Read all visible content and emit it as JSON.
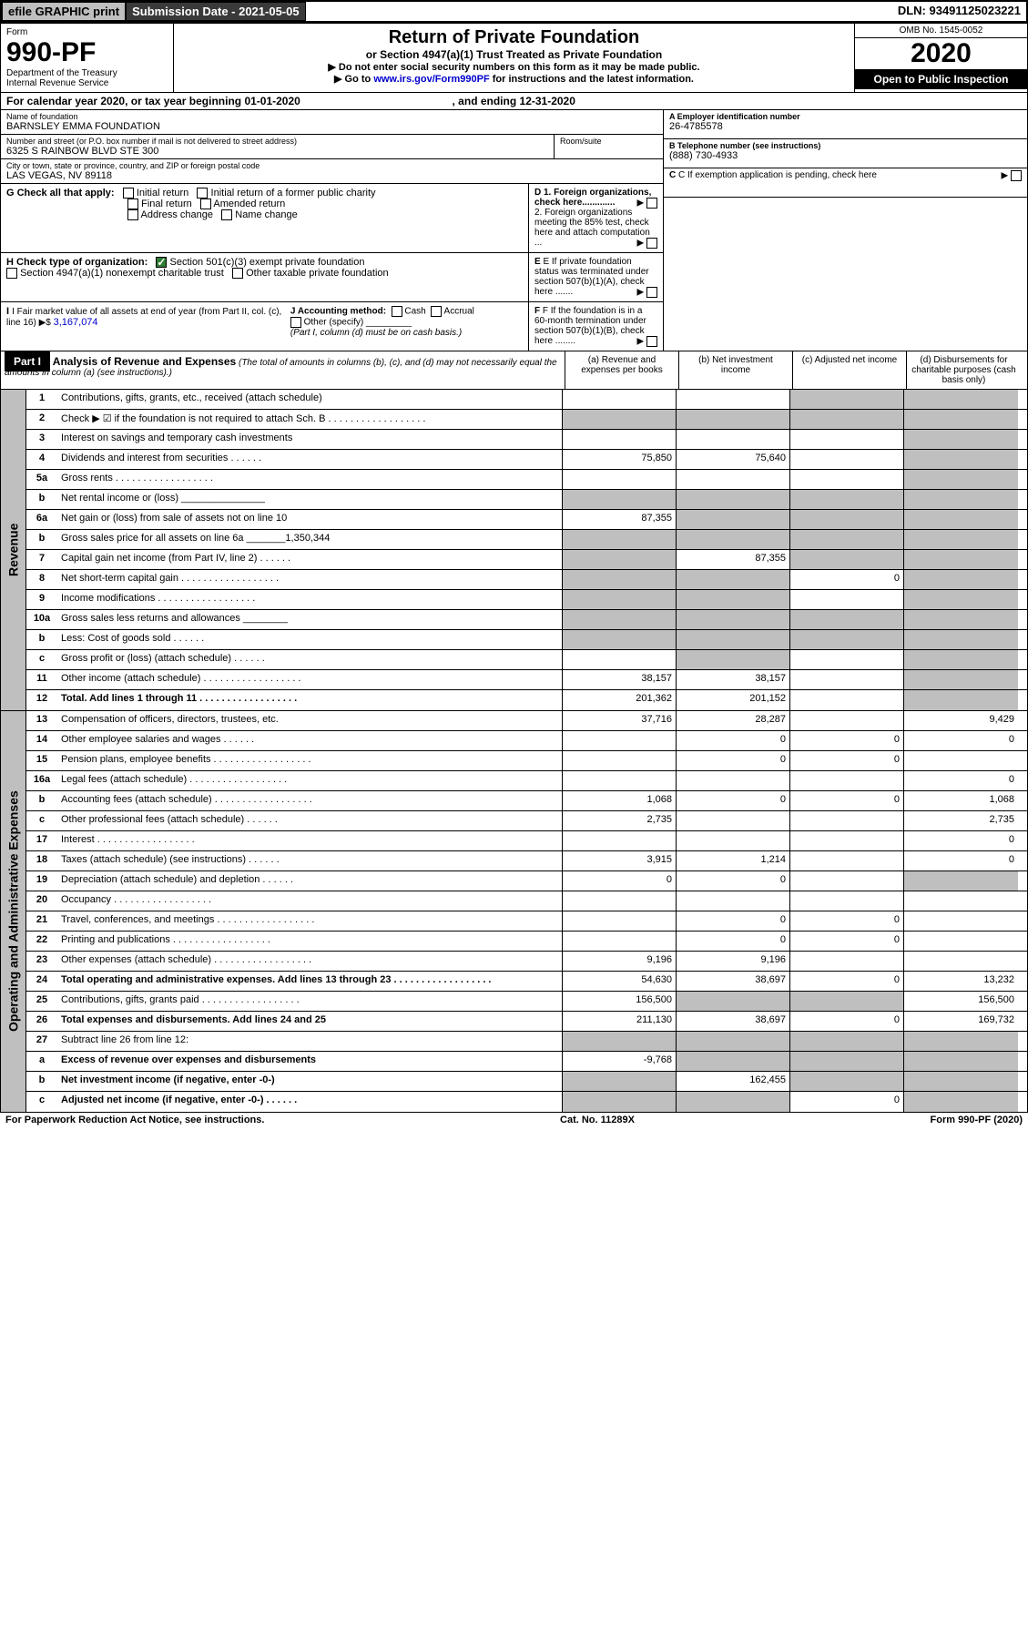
{
  "topbar": {
    "efile": "efile GRAPHIC print",
    "subdate": "Submission Date - 2021-05-05",
    "dln": "DLN: 93491125023221"
  },
  "header": {
    "form": "Form",
    "formno": "990-PF",
    "dept": "Department of the Treasury",
    "irs": "Internal Revenue Service",
    "title": "Return of Private Foundation",
    "sub": "or Section 4947(a)(1) Trust Treated as Private Foundation",
    "note1": "▶ Do not enter social security numbers on this form as it may be made public.",
    "note2_pre": "▶ Go to ",
    "note2_link": "www.irs.gov/Form990PF",
    "note2_post": " for instructions and the latest information.",
    "omb": "OMB No. 1545-0052",
    "year": "2020",
    "open": "Open to Public Inspection"
  },
  "calyear": {
    "a": "For calendar year 2020, or tax year beginning 01-01-2020",
    "b": ", and ending 12-31-2020"
  },
  "info": {
    "name_lbl": "Name of foundation",
    "name": "BARNSLEY EMMA FOUNDATION",
    "addr_lbl": "Number and street (or P.O. box number if mail is not delivered to street address)",
    "room_lbl": "Room/suite",
    "addr": "6325 S RAINBOW BLVD STE 300",
    "city_lbl": "City or town, state or province, country, and ZIP or foreign postal code",
    "city": "LAS VEGAS, NV  89118",
    "a_lbl": "A Employer identification number",
    "a": "26-4785578",
    "b_lbl": "B Telephone number (see instructions)",
    "b": "(888) 730-4933",
    "c": "C If exemption application is pending, check here",
    "d1": "D 1. Foreign organizations, check here.............",
    "d2": "2. Foreign organizations meeting the 85% test, check here and attach computation ...",
    "e": "E If private foundation status was terminated under section 507(b)(1)(A), check here .......",
    "f": "F If the foundation is in a 60-month termination under section 507(b)(1)(B), check here ........"
  },
  "g": {
    "label": "G Check all that apply:",
    "o1": "Initial return",
    "o2": "Initial return of a former public charity",
    "o3": "Final return",
    "o4": "Amended return",
    "o5": "Address change",
    "o6": "Name change"
  },
  "h": {
    "label": "H Check type of organization:",
    "o1": "Section 501(c)(3) exempt private foundation",
    "o2": "Section 4947(a)(1) nonexempt charitable trust",
    "o3": "Other taxable private foundation"
  },
  "i": {
    "lbl": "I Fair market value of all assets at end of year (from Part II, col. (c), line 16) ▶$ ",
    "val": "3,167,074"
  },
  "j": {
    "lbl": "J Accounting method:",
    "cash": "Cash",
    "accr": "Accrual",
    "other": "Other (specify)",
    "note": "(Part I, column (d) must be on cash basis.)"
  },
  "part1_head": {
    "label": "Part I",
    "title": "Analysis of Revenue and Expenses",
    "sub": " (The total of amounts in columns (b), (c), and (d) may not necessarily equal the amounts in column (a) (see instructions).)",
    "col_a": "(a)   Revenue and expenses per books",
    "col_b": "(b)  Net investment income",
    "col_c": "(c)  Adjusted net income",
    "col_d": "(d)  Disbursements for charitable purposes (cash basis only)"
  },
  "vlabels": {
    "rev": "Revenue",
    "exp": "Operating and Administrative Expenses"
  },
  "rows": [
    {
      "n": "1",
      "d": "Contributions, gifts, grants, etc., received (attach schedule)",
      "a": "",
      "b": "",
      "c": "g",
      "dd": "g"
    },
    {
      "n": "2",
      "d": "Check ▶ ☑ if the foundation is not required to attach Sch. B",
      "dot": true,
      "a": "g",
      "b": "g",
      "c": "g",
      "dd": "g"
    },
    {
      "n": "3",
      "d": "Interest on savings and temporary cash investments",
      "a": "",
      "b": "",
      "c": "",
      "dd": "g"
    },
    {
      "n": "4",
      "d": "Dividends and interest from securities",
      "dot": "s",
      "a": "75,850",
      "b": "75,640",
      "c": "",
      "dd": "g"
    },
    {
      "n": "5a",
      "d": "Gross rents",
      "dot": true,
      "a": "",
      "b": "",
      "c": "",
      "dd": "g"
    },
    {
      "n": "b",
      "d": "Net rental income or (loss)   _______________",
      "a": "g",
      "b": "g",
      "c": "g",
      "dd": "g"
    },
    {
      "n": "6a",
      "d": "Net gain or (loss) from sale of assets not on line 10",
      "a": "87,355",
      "b": "g",
      "c": "g",
      "dd": "g"
    },
    {
      "n": "b",
      "d": "Gross sales price for all assets on line 6a _______1,350,344",
      "a": "g",
      "b": "g",
      "c": "g",
      "dd": "g"
    },
    {
      "n": "7",
      "d": "Capital gain net income (from Part IV, line 2)",
      "dot": "s",
      "a": "g",
      "b": "87,355",
      "c": "g",
      "dd": "g"
    },
    {
      "n": "8",
      "d": "Net short-term capital gain",
      "dot": true,
      "a": "g",
      "b": "g",
      "c": "0",
      "dd": "g"
    },
    {
      "n": "9",
      "d": "Income modifications",
      "dot": true,
      "a": "g",
      "b": "g",
      "c": "",
      "dd": "g"
    },
    {
      "n": "10a",
      "d": "Gross sales less returns and allowances  ________",
      "a": "g",
      "b": "g",
      "c": "g",
      "dd": "g"
    },
    {
      "n": "b",
      "d": "Less: Cost of goods sold",
      "dot": "s",
      "a": "g",
      "b": "g",
      "c": "g",
      "dd": "g"
    },
    {
      "n": "c",
      "d": "Gross profit or (loss) (attach schedule)",
      "dot": "s",
      "a": "",
      "b": "g",
      "c": "",
      "dd": "g"
    },
    {
      "n": "11",
      "d": "Other income (attach schedule)",
      "dot": true,
      "a": "38,157",
      "b": "38,157",
      "c": "",
      "dd": "g"
    },
    {
      "n": "12",
      "d": "Total. Add lines 1 through 11",
      "dot": true,
      "b2": true,
      "a": "201,362",
      "b": "201,152",
      "c": "",
      "dd": "g"
    }
  ],
  "exp_rows": [
    {
      "n": "13",
      "d": "Compensation of officers, directors, trustees, etc.",
      "a": "37,716",
      "b": "28,287",
      "c": "",
      "dd": "9,429"
    },
    {
      "n": "14",
      "d": "Other employee salaries and wages",
      "dot": "s",
      "a": "",
      "b": "0",
      "c": "0",
      "dd": "0"
    },
    {
      "n": "15",
      "d": "Pension plans, employee benefits",
      "dot": true,
      "a": "",
      "b": "0",
      "c": "0",
      "dd": ""
    },
    {
      "n": "16a",
      "d": "Legal fees (attach schedule)",
      "dot": true,
      "a": "",
      "b": "",
      "c": "",
      "dd": "0"
    },
    {
      "n": "b",
      "d": "Accounting fees (attach schedule)",
      "dot": true,
      "a": "1,068",
      "b": "0",
      "c": "0",
      "dd": "1,068"
    },
    {
      "n": "c",
      "d": "Other professional fees (attach schedule)",
      "dot": "s",
      "a": "2,735",
      "b": "",
      "c": "",
      "dd": "2,735"
    },
    {
      "n": "17",
      "d": "Interest",
      "dot": true,
      "a": "",
      "b": "",
      "c": "",
      "dd": "0"
    },
    {
      "n": "18",
      "d": "Taxes (attach schedule) (see instructions)",
      "dot": "s",
      "a": "3,915",
      "b": "1,214",
      "c": "",
      "dd": "0"
    },
    {
      "n": "19",
      "d": "Depreciation (attach schedule) and depletion",
      "dot": "s",
      "a": "0",
      "b": "0",
      "c": "",
      "dd": "g"
    },
    {
      "n": "20",
      "d": "Occupancy",
      "dot": true,
      "a": "",
      "b": "",
      "c": "",
      "dd": ""
    },
    {
      "n": "21",
      "d": "Travel, conferences, and meetings",
      "dot": true,
      "a": "",
      "b": "0",
      "c": "0",
      "dd": ""
    },
    {
      "n": "22",
      "d": "Printing and publications",
      "dot": true,
      "a": "",
      "b": "0",
      "c": "0",
      "dd": ""
    },
    {
      "n": "23",
      "d": "Other expenses (attach schedule)",
      "dot": true,
      "a": "9,196",
      "b": "9,196",
      "c": "",
      "dd": ""
    },
    {
      "n": "24",
      "d": "Total operating and administrative expenses. Add lines 13 through 23",
      "dot": true,
      "b2": true,
      "a": "54,630",
      "b": "38,697",
      "c": "0",
      "dd": "13,232"
    },
    {
      "n": "25",
      "d": "Contributions, gifts, grants paid",
      "dot": true,
      "a": "156,500",
      "b": "g",
      "c": "g",
      "dd": "156,500"
    },
    {
      "n": "26",
      "d": "Total expenses and disbursements. Add lines 24 and 25",
      "b2": true,
      "a": "211,130",
      "b": "38,697",
      "c": "0",
      "dd": "169,732"
    },
    {
      "n": "27",
      "d": "Subtract line 26 from line 12:",
      "a": "g",
      "b": "g",
      "c": "g",
      "dd": "g"
    },
    {
      "n": "a",
      "d": "Excess of revenue over expenses and disbursements",
      "b2": true,
      "a": "-9,768",
      "b": "g",
      "c": "g",
      "dd": "g"
    },
    {
      "n": "b",
      "d": "Net investment income (if negative, enter -0-)",
      "b2": true,
      "a": "g",
      "b": "162,455",
      "c": "g",
      "dd": "g"
    },
    {
      "n": "c",
      "d": "Adjusted net income (if negative, enter -0-)",
      "dot": "s",
      "b2": true,
      "a": "g",
      "b": "g",
      "c": "0",
      "dd": "g"
    }
  ],
  "footer": {
    "pra": "For Paperwork Reduction Act Notice, see instructions.",
    "cat": "Cat. No. 11289X",
    "form": "Form 990-PF (2020)"
  }
}
